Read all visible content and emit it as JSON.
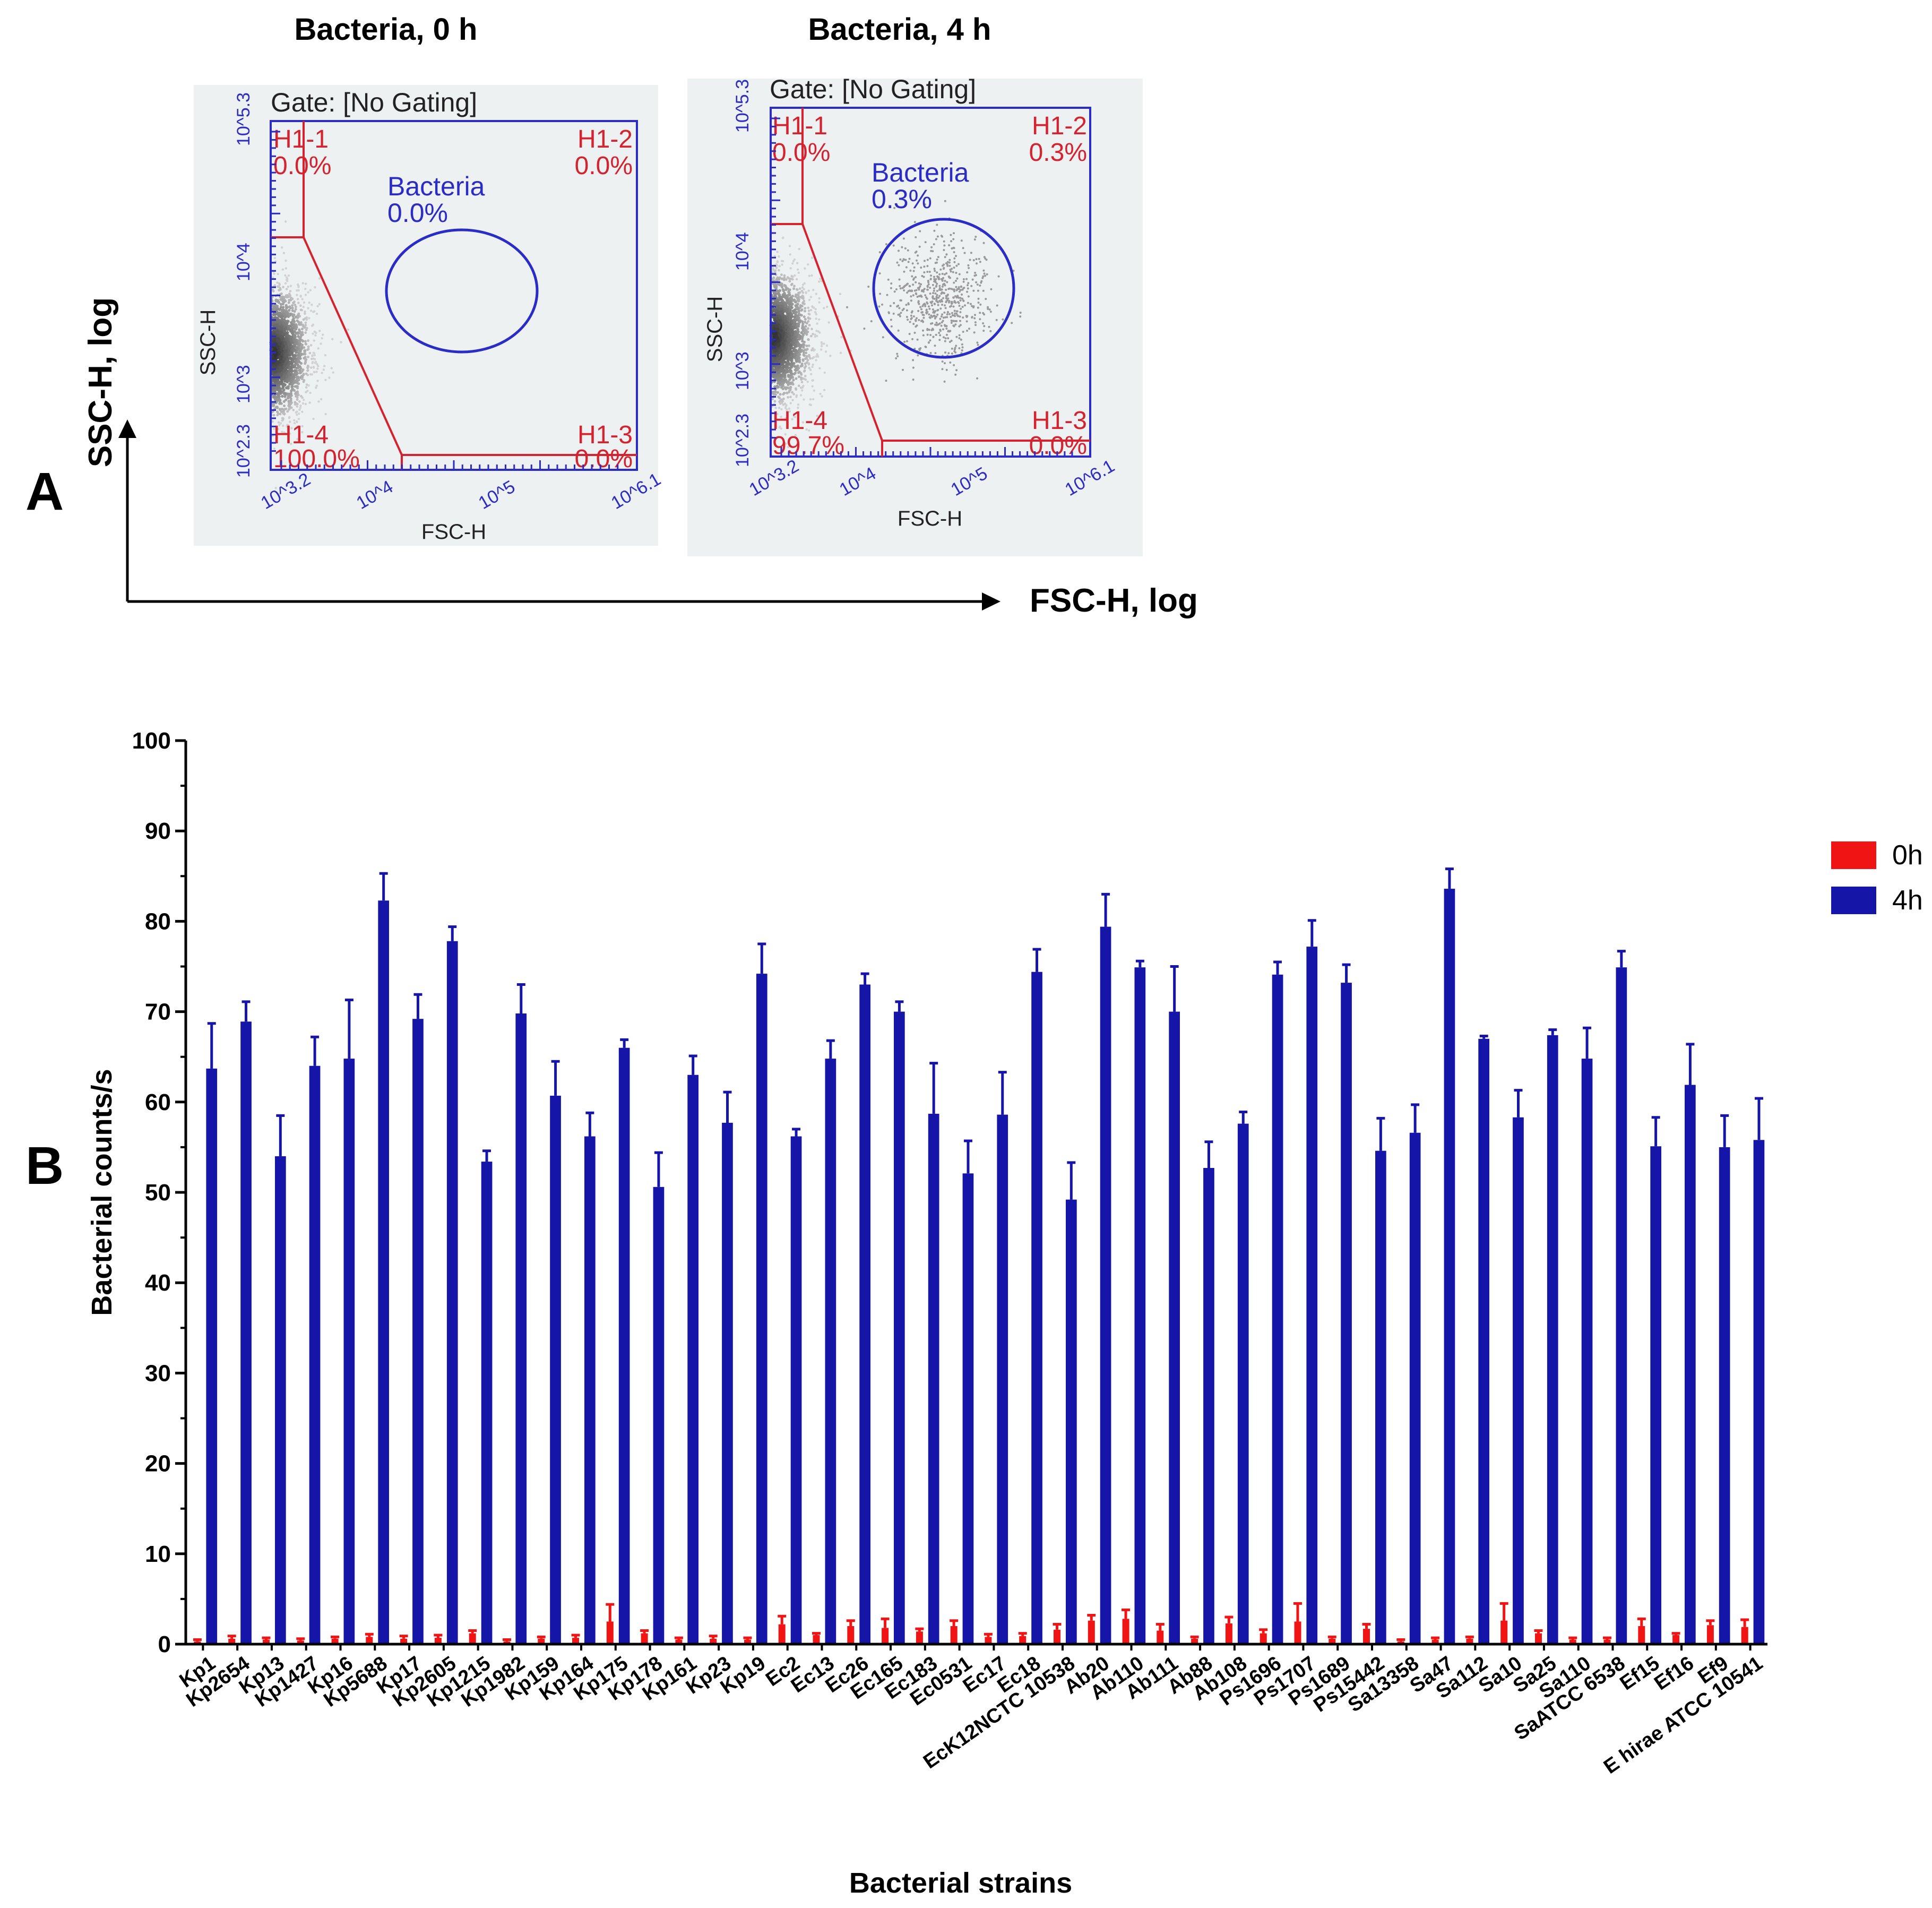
{
  "panel_a": {
    "label": "A",
    "x_axis_caption": "FSC-H, log",
    "y_axis_caption": "SSC-H, log",
    "plots": [
      {
        "title": "Bacteria, 0 h",
        "gate_text": "Gate: [No Gating]",
        "x_axis_name": "FSC-H",
        "y_axis_name": "SSC-H",
        "x_ticks": [
          "10^3.2",
          "10^4",
          "10^5",
          "10^6.1"
        ],
        "y_ticks": [
          "10^2.3",
          "10^3",
          "10^4",
          "10^5.3"
        ],
        "regions": {
          "h1_1": {
            "name": "H1-1",
            "value": "0.0%"
          },
          "h1_2": {
            "name": "H1-2",
            "value": "0.0%"
          },
          "h1_3": {
            "name": "H1-3",
            "value": "0.0%"
          },
          "h1_4": {
            "name": "H1-4",
            "value": "100.0%"
          }
        },
        "bacteria_gate": {
          "name": "Bacteria",
          "value": "0.0%"
        }
      },
      {
        "title": "Bacteria, 4 h",
        "gate_text": "Gate: [No Gating]",
        "x_axis_name": "FSC-H",
        "y_axis_name": "SSC-H",
        "x_ticks": [
          "10^3.2",
          "10^4",
          "10^5",
          "10^6.1"
        ],
        "y_ticks": [
          "10^2.3",
          "10^3",
          "10^4",
          "10^5.3"
        ],
        "regions": {
          "h1_1": {
            "name": "H1-1",
            "value": "0.0%"
          },
          "h1_2": {
            "name": "H1-2",
            "value": "0.3%"
          },
          "h1_3": {
            "name": "H1-3",
            "value": "0.0%"
          },
          "h1_4": {
            "name": "H1-4",
            "value": "99.7%"
          }
        },
        "bacteria_gate": {
          "name": "Bacteria",
          "value": "0.3%"
        }
      }
    ],
    "colors": {
      "gate": "#d6222f",
      "bacteria_gate": "#2b2bc6",
      "plot_bg": "#edf1f2",
      "density": "#333333"
    }
  },
  "panel_b": {
    "label": "B",
    "chart_data": {
      "type": "bar",
      "xlabel": "Bacterial strains",
      "ylabel": "Bacterial counts/s",
      "ylim": [
        0,
        100
      ],
      "yticks": [
        0,
        10,
        20,
        30,
        40,
        50,
        60,
        70,
        80,
        90,
        100
      ],
      "legend_position": "top-right",
      "grid": false,
      "categories": [
        "Kp1",
        "Kp2654",
        "Kp13",
        "Kp1427",
        "Kp16",
        "Kp5688",
        "Kp17",
        "Kp2605",
        "Kp1215",
        "Kp1982",
        "Kp159",
        "Kp164",
        "Kp175",
        "Kp178",
        "Kp161",
        "Kp23",
        "Kp19",
        "Ec2",
        "Ec13",
        "Ec26",
        "Ec165",
        "Ec183",
        "Ec0531",
        "Ec17",
        "Ec18",
        "EcK12NCTC 10538",
        "Ab20",
        "Ab110",
        "Ab111",
        "Ab88",
        "Ab108",
        "Ps1696",
        "Ps1707",
        "Ps1689",
        "Ps15442",
        "Sa13358",
        "Sa47",
        "Sa112",
        "Sa10",
        "Sa25",
        "Sa110",
        "SaATCC 6538",
        "Ef15",
        "Ef16",
        "Ef9",
        "E hirae ATCC 10541"
      ],
      "series": [
        {
          "name": "0h",
          "color": "#f01414",
          "values": [
            0.3,
            0.6,
            0.5,
            0.4,
            0.6,
            0.8,
            0.6,
            0.7,
            1.2,
            0.3,
            0.6,
            0.7,
            2.5,
            1.2,
            0.5,
            0.6,
            0.5,
            2.2,
            1.0,
            2.0,
            1.8,
            1.4,
            2.0,
            0.8,
            0.9,
            1.6,
            2.6,
            2.8,
            1.5,
            0.6,
            2.3,
            1.2,
            2.5,
            0.6,
            1.7,
            0.3,
            0.5,
            0.6,
            2.6,
            1.2,
            0.5,
            0.5,
            2.0,
            1.0,
            2.1,
            1.9
          ],
          "errors": [
            0.2,
            0.3,
            0.2,
            0.2,
            0.2,
            0.3,
            0.3,
            0.3,
            0.3,
            0.2,
            0.2,
            0.3,
            1.9,
            0.3,
            0.2,
            0.3,
            0.2,
            0.9,
            0.2,
            0.6,
            1.0,
            0.3,
            0.6,
            0.3,
            0.3,
            0.6,
            0.6,
            1.0,
            0.7,
            0.2,
            0.7,
            0.4,
            2.0,
            0.2,
            0.5,
            0.2,
            0.2,
            0.2,
            1.9,
            0.3,
            0.2,
            0.2,
            0.8,
            0.2,
            0.5,
            0.8
          ]
        },
        {
          "name": "4h",
          "color": "#1515a8",
          "values": [
            63.7,
            68.9,
            54,
            64,
            64.8,
            82.3,
            69.2,
            77.8,
            53.4,
            69.8,
            60.7,
            56.2,
            66,
            50.6,
            63,
            57.7,
            74.2,
            56.2,
            64.8,
            73,
            70,
            58.7,
            52.1,
            58.6,
            74.4,
            49.2,
            79.4,
            74.9,
            70,
            52.7,
            57.6,
            74.1,
            77.2,
            73.2,
            54.6,
            56.6,
            83.6,
            67,
            58.3,
            67.4,
            64.8,
            74.9,
            55.1,
            61.9,
            55,
            55.8
          ],
          "errors": [
            5.0,
            2.2,
            4.5,
            3.2,
            6.5,
            3.0,
            2.7,
            1.6,
            1.2,
            3.2,
            3.8,
            2.6,
            0.9,
            3.8,
            2.1,
            3.4,
            3.3,
            0.8,
            2.0,
            1.2,
            1.1,
            5.6,
            3.6,
            4.7,
            2.5,
            4.1,
            3.6,
            0.7,
            5.0,
            2.9,
            1.3,
            1.4,
            2.9,
            2.0,
            3.6,
            3.1,
            2.2,
            0.3,
            3.0,
            0.6,
            3.4,
            1.8,
            3.2,
            4.5,
            3.5,
            4.6
          ]
        }
      ]
    }
  }
}
